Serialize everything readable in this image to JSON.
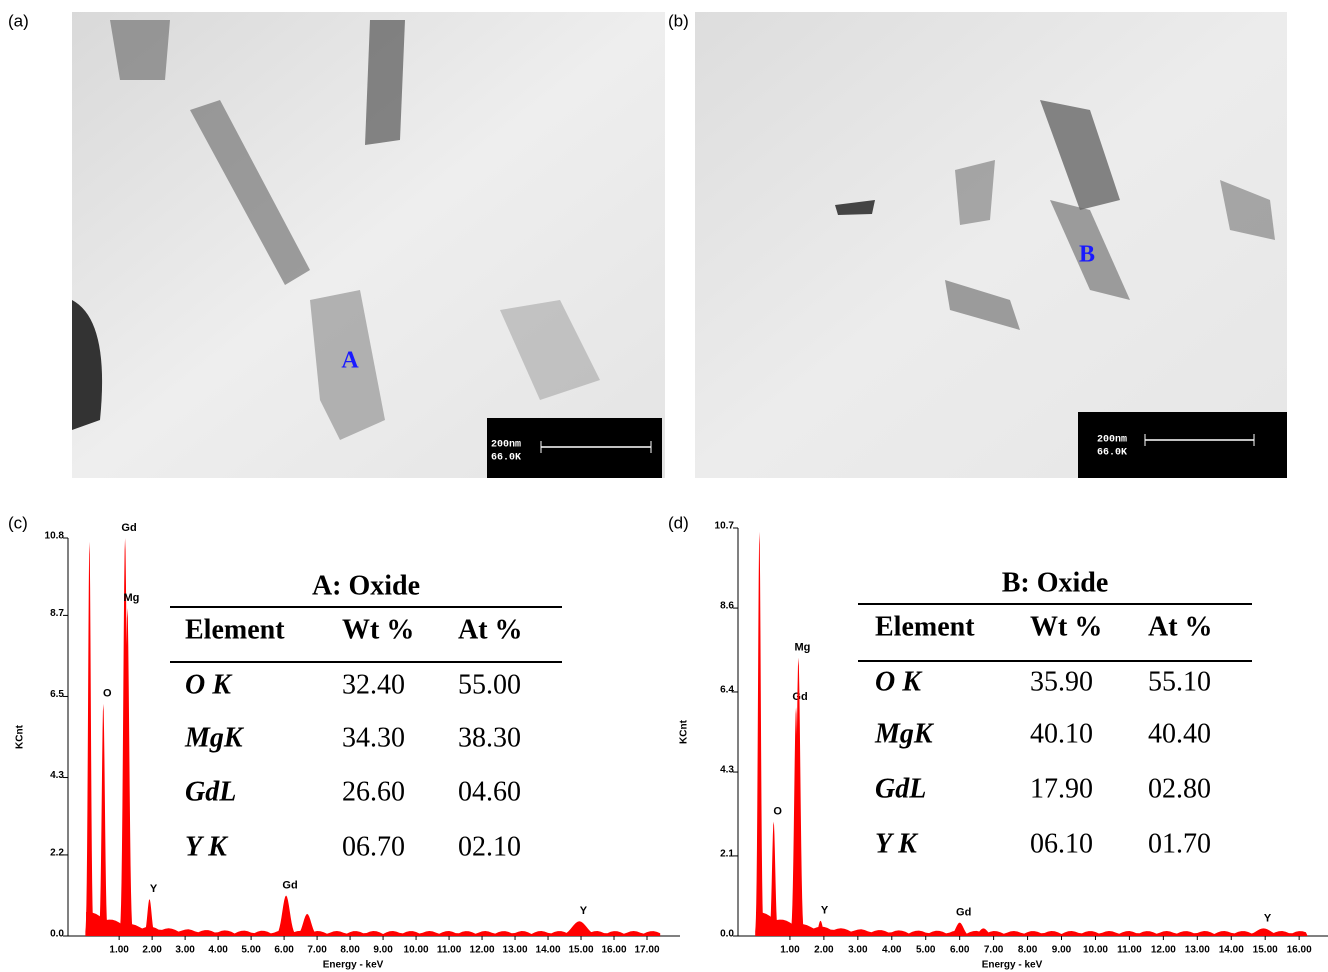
{
  "micrographs": [
    {
      "panel_label": "(a)",
      "marker": "A",
      "scale_bar": "200nm",
      "magnification": "66.0K"
    },
    {
      "panel_label": "(b)",
      "marker": "B",
      "scale_bar": "200nm",
      "magnification": "66.0K"
    }
  ],
  "chart_data": [
    {
      "type": "spectrum",
      "panel_label": "(c)",
      "x_label": "Energy - keV",
      "y_label": "KCnt",
      "color": "#ff0000",
      "xlim": [
        -0.55,
        18
      ],
      "ylim": [
        0,
        10.8
      ],
      "xticks": [
        {
          "value": 1,
          "label": "1.00"
        },
        {
          "value": 2,
          "label": "2.00"
        },
        {
          "value": 3,
          "label": "3.00"
        },
        {
          "value": 4,
          "label": "4.00"
        },
        {
          "value": 5,
          "label": "5.00"
        },
        {
          "value": 6,
          "label": "6.00"
        },
        {
          "value": 7,
          "label": "7.00"
        },
        {
          "value": 8,
          "label": "8.00"
        },
        {
          "value": 9,
          "label": "9.00"
        },
        {
          "value": 10,
          "label": "10.00"
        },
        {
          "value": 11,
          "label": "11.00"
        },
        {
          "value": 12,
          "label": "12.00"
        },
        {
          "value": 13,
          "label": "13.00"
        },
        {
          "value": 14,
          "label": "14.00"
        },
        {
          "value": 15,
          "label": "15.00"
        },
        {
          "value": 16,
          "label": "16.00"
        },
        {
          "value": 17,
          "label": "17.00"
        }
      ],
      "yticks": [
        {
          "value": 0,
          "label": "0.0"
        },
        2.2,
        4.3,
        6.5,
        8.7,
        10.8
      ],
      "x": [
        0.1,
        0.52,
        1.18,
        1.25,
        1.92,
        6.06,
        6.7,
        14.95
      ],
      "values": [
        10.7,
        6.3,
        10.8,
        8.9,
        1.0,
        1.1,
        0.6,
        0.4
      ],
      "peak_labels": [
        null,
        "O",
        "Gd",
        "Mg",
        "Y",
        "Gd",
        null,
        "Y"
      ]
    },
    {
      "type": "spectrum",
      "panel_label": "(d)",
      "x_label": "Energy - keV",
      "y_label": "KCnt",
      "color": "#ff0000",
      "xlim": [
        -0.53,
        16.85
      ],
      "ylim": [
        0,
        10.7
      ],
      "xticks": [
        {
          "value": 1,
          "label": "1.00"
        },
        {
          "value": 2,
          "label": "2.00"
        },
        {
          "value": 3,
          "label": "3.00"
        },
        {
          "value": 4,
          "label": "4.00"
        },
        {
          "value": 5,
          "label": "5.00"
        },
        {
          "value": 6,
          "label": "6.00"
        },
        {
          "value": 7,
          "label": "7.00"
        },
        {
          "value": 8,
          "label": "8.00"
        },
        {
          "value": 9,
          "label": "9.00"
        },
        {
          "value": 10,
          "label": "10.00"
        },
        {
          "value": 11,
          "label": "11.00"
        },
        {
          "value": 12,
          "label": "12.00"
        },
        {
          "value": 13,
          "label": "13.00"
        },
        {
          "value": 14,
          "label": "14.00"
        },
        {
          "value": 15,
          "label": "15.00"
        },
        {
          "value": 16,
          "label": "16.00"
        }
      ],
      "yticks": [
        {
          "value": 0,
          "label": "0.0"
        },
        2.1,
        4.3,
        6.4,
        8.6,
        10.7
      ],
      "x": [
        0.1,
        0.52,
        1.18,
        1.25,
        1.9,
        6.0,
        6.7,
        14.95
      ],
      "values": [
        10.6,
        3.0,
        6.0,
        7.3,
        0.4,
        0.35,
        0.2,
        0.2
      ],
      "peak_labels": [
        null,
        "O",
        "Gd",
        "Mg",
        "Y",
        "Gd",
        null,
        "Y"
      ]
    }
  ],
  "tables": [
    {
      "title": "A: Oxide",
      "header": [
        "Element",
        "Wt %",
        "At %"
      ],
      "rows": [
        [
          "O K",
          "32.40",
          "55.00"
        ],
        [
          "MgK",
          "34.30",
          "38.30"
        ],
        [
          "GdL",
          "26.60",
          "04.60"
        ],
        [
          "Y K",
          "06.70",
          "02.10"
        ]
      ]
    },
    {
      "title": "B: Oxide",
      "header": [
        "Element",
        "Wt %",
        "At %"
      ],
      "rows": [
        [
          "O K",
          "35.90",
          "55.10"
        ],
        [
          "MgK",
          "40.10",
          "40.40"
        ],
        [
          "GdL",
          "17.90",
          "02.80"
        ],
        [
          "Y K",
          "06.10",
          "01.70"
        ]
      ]
    }
  ]
}
